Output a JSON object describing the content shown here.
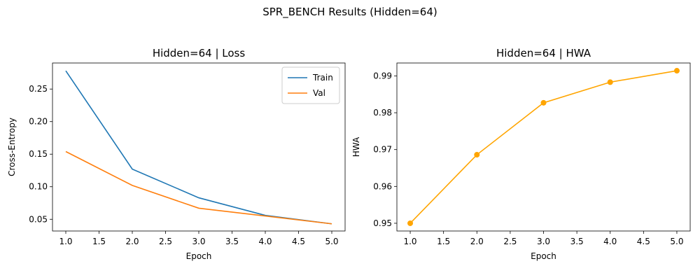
{
  "figure": {
    "suptitle": "SPR_BENCH Results (Hidden=64)"
  },
  "chart_data": [
    {
      "type": "line",
      "title": "Hidden=64 | Loss",
      "xlabel": "Epoch",
      "ylabel": "Cross-Entropy",
      "x": [
        1,
        2,
        3,
        4,
        5
      ],
      "xlim": [
        0.8,
        5.2
      ],
      "ylim": [
        0.032,
        0.29
      ],
      "xticks": [
        1.0,
        1.5,
        2.0,
        2.5,
        3.0,
        3.5,
        4.0,
        4.5,
        5.0
      ],
      "yticks": [
        0.05,
        0.1,
        0.15,
        0.2,
        0.25
      ],
      "xtick_labels": [
        "1.0",
        "1.5",
        "2.0",
        "2.5",
        "3.0",
        "3.5",
        "4.0",
        "4.5",
        "5.0"
      ],
      "ytick_labels": [
        "0.05",
        "0.10",
        "0.15",
        "0.20",
        "0.25"
      ],
      "grid": false,
      "legend": "top-right",
      "series": [
        {
          "name": "Train",
          "color": "#1f77b4",
          "values": [
            0.278,
            0.127,
            0.083,
            0.056,
            0.043
          ],
          "markers": false
        },
        {
          "name": "Val",
          "color": "#ff7f0e",
          "values": [
            0.154,
            0.102,
            0.067,
            0.055,
            0.043
          ],
          "markers": false
        }
      ]
    },
    {
      "type": "line",
      "title": "Hidden=64 | HWA",
      "xlabel": "Epoch",
      "ylabel": "HWA",
      "x": [
        1,
        2,
        3,
        4,
        5
      ],
      "xlim": [
        0.8,
        5.2
      ],
      "ylim": [
        0.9479,
        0.9935
      ],
      "xticks": [
        1.0,
        1.5,
        2.0,
        2.5,
        3.0,
        3.5,
        4.0,
        4.5,
        5.0
      ],
      "yticks": [
        0.95,
        0.96,
        0.97,
        0.98,
        0.99
      ],
      "xtick_labels": [
        "1.0",
        "1.5",
        "2.0",
        "2.5",
        "3.0",
        "3.5",
        "4.0",
        "4.5",
        "5.0"
      ],
      "ytick_labels": [
        "0.95",
        "0.96",
        "0.97",
        "0.98",
        "0.99"
      ],
      "grid": false,
      "legend": "none",
      "series": [
        {
          "color": "#ffa500",
          "values": [
            0.95,
            0.9686,
            0.9827,
            0.9883,
            0.9914
          ],
          "markers": true
        }
      ]
    }
  ]
}
